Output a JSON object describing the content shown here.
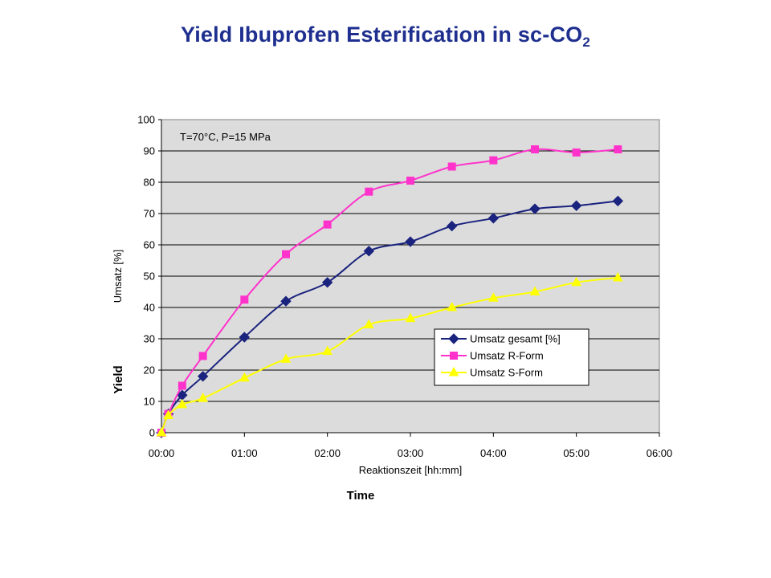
{
  "slide": {
    "title_main": "Yield Ibuprofen Esterification in sc-CO",
    "title_sub": "2"
  },
  "chart_data": {
    "type": "line",
    "annotation": "T=70°C, P=15 MPa",
    "xlabel": "Reaktionszeit [hh:mm]",
    "ylabel": "Umsatz [%]",
    "extra_labels": {
      "y": "Yield",
      "x": "Time"
    },
    "x_ticks": [
      "00:00",
      "01:00",
      "02:00",
      "03:00",
      "04:00",
      "05:00",
      "06:00"
    ],
    "y_ticks": [
      "0",
      "10",
      "20",
      "30",
      "40",
      "50",
      "60",
      "70",
      "80",
      "90",
      "100"
    ],
    "xlim": [
      "00:00",
      "06:00"
    ],
    "ylim": [
      0,
      100
    ],
    "grid": "horizontal",
    "legend_position": "lower-right",
    "plot_background": "#dcdcdc",
    "series": [
      {
        "name": "Umsatz gesamt [%]",
        "color": "#1a237e",
        "marker": "diamond",
        "x": [
          "00:00",
          "00:05",
          "00:15",
          "00:30",
          "01:00",
          "01:30",
          "02:00",
          "02:30",
          "03:00",
          "03:30",
          "04:00",
          "04:30",
          "05:00",
          "05:30"
        ],
        "y": [
          0,
          6,
          12,
          18,
          30.5,
          42,
          48,
          58,
          61,
          66,
          68.5,
          71.5,
          72.5,
          74
        ]
      },
      {
        "name": "Umsatz R-Form",
        "color": "#ff33cc",
        "marker": "square",
        "x": [
          "00:00",
          "00:05",
          "00:15",
          "00:30",
          "01:00",
          "01:30",
          "02:00",
          "02:30",
          "03:00",
          "03:30",
          "04:00",
          "04:30",
          "05:00",
          "05:30"
        ],
        "y": [
          0,
          6,
          15,
          24.5,
          42.5,
          57,
          66.5,
          77,
          80.5,
          85,
          87,
          90.5,
          89.5,
          90.5
        ]
      },
      {
        "name": "Umsatz S-Form",
        "color": "#ffff00",
        "marker": "triangle",
        "x": [
          "00:00",
          "00:05",
          "00:15",
          "00:30",
          "01:00",
          "01:30",
          "02:00",
          "02:30",
          "03:00",
          "03:30",
          "04:00",
          "04:30",
          "05:00",
          "05:30"
        ],
        "y": [
          0,
          5.5,
          9,
          11,
          17.5,
          23.5,
          26,
          34.5,
          36.5,
          40,
          43,
          45,
          48,
          49.5
        ]
      }
    ]
  }
}
